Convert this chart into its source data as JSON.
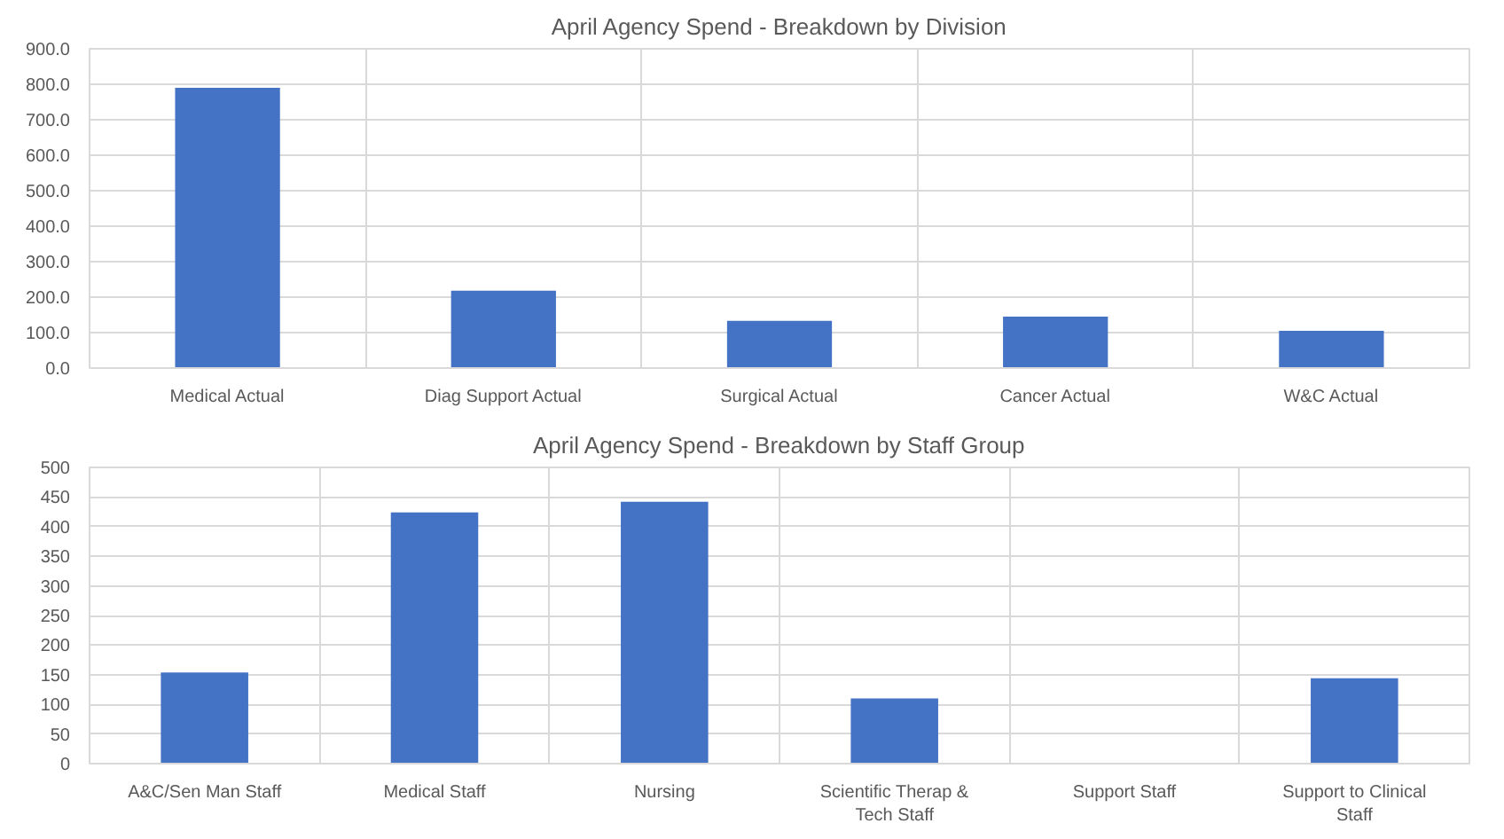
{
  "chart_data": [
    {
      "type": "bar",
      "title": "April Agency Spend - Breakdown by Division",
      "categories": [
        "Medical Actual",
        "Diag Support Actual",
        "Surgical Actual",
        "Cancer Actual",
        "W&C Actual"
      ],
      "series": [
        {
          "color": "#4472c4",
          "values": [
            790,
            218,
            133,
            145,
            105
          ]
        }
      ],
      "ylim": [
        0,
        900
      ],
      "yticks": [
        {
          "value": 0,
          "label": "0.0"
        },
        {
          "value": 100,
          "label": "100.0"
        },
        {
          "value": 200,
          "label": "200.0"
        },
        {
          "value": 300,
          "label": "300.0"
        },
        {
          "value": 400,
          "label": "400.0"
        },
        {
          "value": 500,
          "label": "500.0"
        },
        {
          "value": 600,
          "label": "600.0"
        },
        {
          "value": 700,
          "label": "700.0"
        },
        {
          "value": 800,
          "label": "800.0"
        },
        {
          "value": 900,
          "label": "900.0"
        }
      ],
      "grid": true
    },
    {
      "type": "bar",
      "title": "April Agency Spend - Breakdown by Staff Group",
      "categories": [
        "A&C/Sen Man Staff",
        "Medical Staff",
        "Nursing",
        "Scientific Therap & Tech Staff",
        "Support Staff",
        "Support to Clinical Staff"
      ],
      "series": [
        {
          "color": "#4472c4",
          "values": [
            154,
            424,
            442,
            110,
            0,
            144
          ]
        }
      ],
      "ylim": [
        0,
        500
      ],
      "yticks": [
        0,
        50,
        100,
        150,
        200,
        250,
        300,
        350,
        400,
        450,
        500
      ],
      "grid": true
    }
  ]
}
